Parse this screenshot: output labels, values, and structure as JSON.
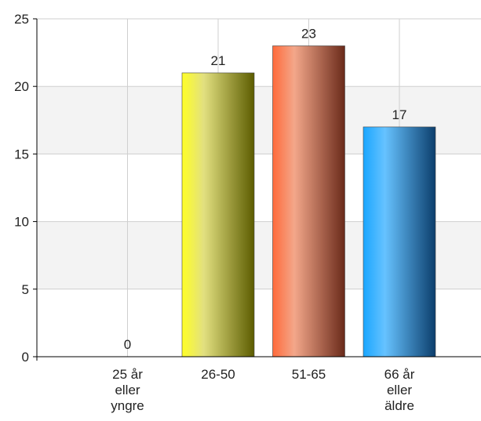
{
  "chart_data": {
    "type": "bar",
    "categories": [
      [
        "25 år",
        "eller",
        "yngre"
      ],
      [
        "26-50"
      ],
      [
        "51-65"
      ],
      [
        "66 år",
        "eller",
        "äldre"
      ]
    ],
    "values": [
      0,
      21,
      23,
      17
    ],
    "data_labels": [
      "0",
      "21",
      "23",
      "17"
    ],
    "ylim": [
      0,
      25
    ],
    "yticks": [
      0,
      5,
      10,
      15,
      20,
      25
    ],
    "grid": true,
    "legend": "none",
    "colors": [
      [
        "#ffffff",
        "#ffffff",
        "#ffffff"
      ],
      [
        "#ffff26",
        "#e2e080",
        "#5c5c00"
      ],
      [
        "#ff6a3a",
        "#f3a78a",
        "#6a2a1a"
      ],
      [
        "#1aa6ff",
        "#66c2ff",
        "#0c3e6c"
      ]
    ],
    "band_color": "#f3f3f3",
    "grid_color": "#cfcfcf",
    "axis_color": "#000000"
  }
}
